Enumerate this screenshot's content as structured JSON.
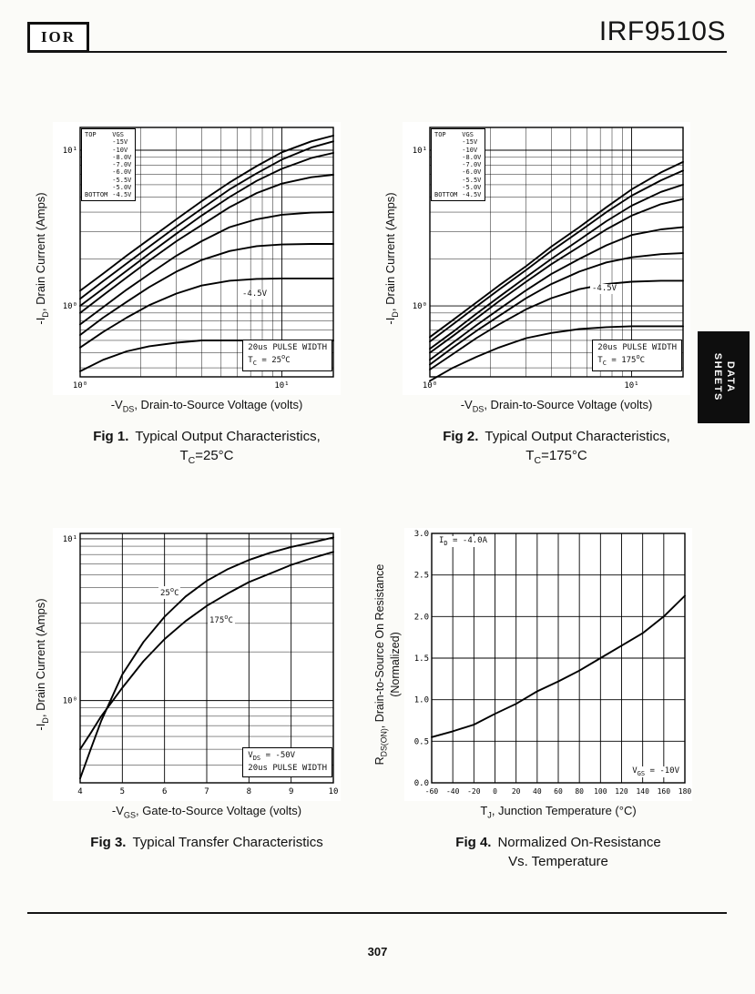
{
  "header": {
    "logo": "IOR",
    "title": "IRF9510S"
  },
  "side_tab": {
    "line1": "DATA",
    "line2": "SHEETS"
  },
  "page": {
    "number": "307"
  },
  "fig1": {
    "legend": {
      "top": "TOP",
      "bottom": "BOTTOM",
      "header": "VGS",
      "values": [
        "-15V",
        "-10V",
        "-8.0V",
        "-7.0V",
        "-6.0V",
        "-5.5V",
        "-5.0V",
        "-4.5V"
      ]
    },
    "ann": {
      "pulse1": [
        {
          "t": "20us PULSE WIDTH"
        }
      ],
      "pulse2": [
        {
          "t": "T"
        },
        {
          "sub": "C"
        },
        {
          "t": " = 25"
        },
        {
          "sup": "o"
        },
        {
          "t": "C"
        }
      ],
      "curve_label": "-4.5V"
    },
    "xlabel": [
      {
        "t": "-V"
      },
      {
        "sub": "DS"
      },
      {
        "t": ", Drain-to-Source Voltage (volts)"
      }
    ],
    "ylabel": [
      {
        "t": "-I"
      },
      {
        "sub": "D"
      },
      {
        "t": ", Drain Current (Amps)"
      }
    ],
    "cap1": [
      {
        "b": "Fig 1."
      },
      {
        "t": "Typical Output Characteristics,"
      }
    ],
    "cap2": [
      {
        "t": "T"
      },
      {
        "sub": "C"
      },
      {
        "t": "=25°C"
      }
    ]
  },
  "fig2": {
    "legend": {
      "top": "TOP",
      "bottom": "BOTTOM",
      "header": "VGS",
      "values": [
        "-15V",
        "-10V",
        "-8.0V",
        "-7.0V",
        "-6.0V",
        "-5.5V",
        "-5.0V",
        "-4.5V"
      ]
    },
    "ann": {
      "pulse1": [
        {
          "t": "20us PULSE WIDTH"
        }
      ],
      "pulse2": [
        {
          "t": "T"
        },
        {
          "sub": "C"
        },
        {
          "t": " = 175"
        },
        {
          "sup": "o"
        },
        {
          "t": "C"
        }
      ],
      "curve_label": "-4.5V"
    },
    "xlabel": [
      {
        "t": "-V"
      },
      {
        "sub": "DS"
      },
      {
        "t": ", Drain-to-Source Voltage (volts)"
      }
    ],
    "ylabel": [
      {
        "t": "-I"
      },
      {
        "sub": "D"
      },
      {
        "t": ", Drain Current (Amps)"
      }
    ],
    "cap1": [
      {
        "b": "Fig 2."
      },
      {
        "t": "Typical Output Characteristics,"
      }
    ],
    "cap2": [
      {
        "t": "T"
      },
      {
        "sub": "C"
      },
      {
        "t": "=175°C"
      }
    ]
  },
  "fig3": {
    "ann": {
      "t25": [
        {
          "t": "25"
        },
        {
          "sup": "o"
        },
        {
          "t": "C"
        }
      ],
      "t175": [
        {
          "t": "175"
        },
        {
          "sup": "o"
        },
        {
          "t": "C"
        }
      ],
      "box1": [
        {
          "t": "V"
        },
        {
          "sub": "DS"
        },
        {
          "t": " = -50V"
        }
      ],
      "box2": [
        {
          "t": "20us PULSE WIDTH"
        }
      ]
    },
    "xlabel": [
      {
        "t": "-V"
      },
      {
        "sub": "GS"
      },
      {
        "t": ", Gate-to-Source Voltage (volts)"
      }
    ],
    "ylabel": [
      {
        "t": "-I"
      },
      {
        "sub": "D"
      },
      {
        "t": ", Drain Current (Amps)"
      }
    ],
    "cap1": [
      {
        "b": "Fig 3."
      },
      {
        "t": "Typical Transfer Characteristics"
      }
    ]
  },
  "fig4": {
    "ann": {
      "id": [
        {
          "t": "I"
        },
        {
          "sub": "D"
        },
        {
          "t": " = -4.0A"
        }
      ],
      "vgs": [
        {
          "t": "V"
        },
        {
          "sub": "GS"
        },
        {
          "t": " = -10V"
        }
      ]
    },
    "xlabel": [
      {
        "t": "T"
      },
      {
        "sub": "J"
      },
      {
        "t": ", Junction Temperature (°C)"
      }
    ],
    "ylabel": [
      {
        "t": "R"
      },
      {
        "sub": "DS(ON)"
      },
      {
        "t": ", Drain-to-Source On Resistance (Normalized)"
      }
    ],
    "cap1": [
      {
        "b": "Fig 4."
      },
      {
        "t": "Normalized On-Resistance"
      }
    ],
    "cap2": [
      {
        "t": "Vs. Temperature"
      }
    ]
  },
  "chart_data": [
    {
      "id": "fig1",
      "type": "line",
      "title": "Typical Output Characteristics, TC=25C",
      "x_axis": {
        "label": "-VDS, Drain-to-Source Voltage (volts)",
        "scale": "log",
        "range": [
          1,
          18
        ],
        "ticks": [
          {
            "v": 1,
            "label": "10⁰"
          },
          {
            "v": 10,
            "label": "10¹"
          }
        ]
      },
      "y_axis": {
        "label": "-ID, Drain Current (Amps)",
        "scale": "log",
        "range": [
          0.35,
          14
        ],
        "ticks": [
          {
            "v": 1,
            "label": "10⁰"
          },
          {
            "v": 10,
            "label": "10¹"
          }
        ]
      },
      "x": [
        1,
        1.3,
        1.7,
        2.2,
        3,
        4,
        5.5,
        7.5,
        10,
        14,
        18
      ],
      "series": [
        {
          "name": "VGS = -15V",
          "values": [
            1.25,
            1.61,
            2.1,
            2.68,
            3.6,
            4.7,
            6.2,
            7.9,
            9.7,
            11.4,
            12.4
          ]
        },
        {
          "name": "VGS = -10V",
          "values": [
            1.11,
            1.44,
            1.87,
            2.4,
            3.23,
            4.2,
            5.6,
            7.1,
            8.7,
            10.4,
            11.4
          ]
        },
        {
          "name": "VGS = -8.0V",
          "values": [
            1.0,
            1.29,
            1.68,
            2.16,
            2.91,
            3.8,
            5.0,
            6.35,
            7.6,
            8.9,
            9.6
          ]
        },
        {
          "name": "VGS = -7.0V",
          "values": [
            0.9,
            1.17,
            1.52,
            1.95,
            2.6,
            3.3,
            4.3,
            5.3,
            6.1,
            6.7,
            6.95
          ]
        },
        {
          "name": "VGS = -6.0V",
          "values": [
            0.76,
            0.98,
            1.27,
            1.6,
            2.1,
            2.6,
            3.2,
            3.6,
            3.85,
            3.97,
            4.0
          ]
        },
        {
          "name": "VGS = -5.5V",
          "values": [
            0.65,
            0.84,
            1.06,
            1.32,
            1.66,
            1.97,
            2.25,
            2.42,
            2.48,
            2.5,
            2.5
          ]
        },
        {
          "name": "VGS = -5.0V",
          "values": [
            0.54,
            0.68,
            0.84,
            1.01,
            1.2,
            1.35,
            1.45,
            1.49,
            1.5,
            1.5,
            1.5
          ]
        },
        {
          "name": "VGS = -4.5V",
          "values": [
            0.38,
            0.45,
            0.51,
            0.55,
            0.58,
            0.6,
            0.6,
            0.6,
            0.6,
            0.6,
            0.6
          ]
        }
      ],
      "notes": [
        "20us PULSE WIDTH",
        "TC = 25C",
        "-4.5V"
      ]
    },
    {
      "id": "fig2",
      "type": "line",
      "title": "Typical Output Characteristics, TC=175C",
      "x_axis": {
        "label": "-VDS, Drain-to-Source Voltage (volts)",
        "scale": "log",
        "range": [
          1,
          18
        ],
        "ticks": [
          {
            "v": 1,
            "label": "10⁰"
          },
          {
            "v": 10,
            "label": "10¹"
          }
        ]
      },
      "y_axis": {
        "label": "-ID, Drain Current (Amps)",
        "scale": "log",
        "range": [
          0.35,
          14
        ],
        "ticks": [
          {
            "v": 1,
            "label": "10⁰"
          },
          {
            "v": 10,
            "label": "10¹"
          }
        ]
      },
      "x": [
        1,
        1.3,
        1.7,
        2.2,
        3,
        4,
        5.5,
        7.5,
        10,
        14,
        18
      ],
      "series": [
        {
          "name": "VGS = -15V",
          "values": [
            0.63,
            0.81,
            1.05,
            1.35,
            1.8,
            2.4,
            3.2,
            4.3,
            5.6,
            7.2,
            8.4
          ]
        },
        {
          "name": "VGS = -10V",
          "values": [
            0.59,
            0.76,
            0.99,
            1.27,
            1.7,
            2.25,
            3.0,
            4.0,
            5.1,
            6.4,
            7.4
          ]
        },
        {
          "name": "VGS = -8.0V",
          "values": [
            0.53,
            0.68,
            0.89,
            1.14,
            1.53,
            2.0,
            2.65,
            3.5,
            4.4,
            5.4,
            6.0
          ]
        },
        {
          "name": "VGS = -7.0V",
          "values": [
            0.5,
            0.64,
            0.83,
            1.07,
            1.43,
            1.85,
            2.4,
            3.1,
            3.8,
            4.5,
            4.85
          ]
        },
        {
          "name": "VGS = -6.0V",
          "values": [
            0.45,
            0.58,
            0.75,
            0.95,
            1.26,
            1.6,
            2.0,
            2.45,
            2.85,
            3.1,
            3.2
          ]
        },
        {
          "name": "VGS = -5.5V",
          "values": [
            0.42,
            0.54,
            0.69,
            0.86,
            1.12,
            1.38,
            1.66,
            1.9,
            2.05,
            2.15,
            2.18
          ]
        },
        {
          "name": "VGS = -5.0V",
          "values": [
            0.39,
            0.49,
            0.62,
            0.76,
            0.95,
            1.12,
            1.28,
            1.38,
            1.43,
            1.45,
            1.45
          ]
        },
        {
          "name": "VGS = -4.5V",
          "values": [
            0.33,
            0.4,
            0.47,
            0.54,
            0.62,
            0.67,
            0.71,
            0.73,
            0.74,
            0.74,
            0.74
          ]
        }
      ],
      "notes": [
        "20us PULSE WIDTH",
        "TC = 175C",
        "-4.5V"
      ]
    },
    {
      "id": "fig3",
      "type": "line",
      "title": "Typical Transfer Characteristics",
      "x_axis": {
        "label": "-VGS, Gate-to-Source Voltage (volts)",
        "scale": "linear",
        "range": [
          4,
          10
        ],
        "grid_step": 1,
        "ticks": [
          {
            "v": 4,
            "label": "4"
          },
          {
            "v": 5,
            "label": "5"
          },
          {
            "v": 6,
            "label": "6"
          },
          {
            "v": 7,
            "label": "7"
          },
          {
            "v": 8,
            "label": "8"
          },
          {
            "v": 9,
            "label": "9"
          },
          {
            "v": 10,
            "label": "10"
          }
        ]
      },
      "y_axis": {
        "label": "-ID, Drain Current (Amps)",
        "scale": "log",
        "range": [
          0.31,
          10.8
        ],
        "ticks": [
          {
            "v": 1,
            "label": "10⁰"
          },
          {
            "v": 10,
            "label": "10¹"
          }
        ]
      },
      "x": [
        4,
        4.25,
        4.5,
        5,
        5.5,
        6,
        6.5,
        7,
        7.5,
        8,
        8.5,
        9,
        9.5,
        10
      ],
      "series": [
        {
          "name": "25C",
          "values": [
            0.33,
            0.5,
            0.75,
            1.45,
            2.3,
            3.3,
            4.4,
            5.5,
            6.5,
            7.4,
            8.2,
            8.9,
            9.5,
            10.2
          ]
        },
        {
          "name": "175C",
          "values": [
            0.5,
            0.63,
            0.8,
            1.2,
            1.75,
            2.4,
            3.1,
            3.85,
            4.6,
            5.4,
            6.1,
            6.9,
            7.6,
            8.3
          ]
        }
      ],
      "notes": [
        "VDS = -50V",
        "20us PULSE WIDTH"
      ]
    },
    {
      "id": "fig4",
      "type": "line",
      "title": "Normalized On-Resistance Vs. Temperature",
      "x_axis": {
        "label": "TJ, Junction Temperature (C)",
        "scale": "linear",
        "range": [
          -60,
          180
        ],
        "grid_step": 20,
        "tick_size": 8,
        "ticks": [
          {
            "v": -60,
            "label": "-60"
          },
          {
            "v": -40,
            "label": "-40"
          },
          {
            "v": -20,
            "label": "-20"
          },
          {
            "v": 0,
            "label": "0"
          },
          {
            "v": 20,
            "label": "20"
          },
          {
            "v": 40,
            "label": "40"
          },
          {
            "v": 60,
            "label": "60"
          },
          {
            "v": 80,
            "label": "80"
          },
          {
            "v": 100,
            "label": "100"
          },
          {
            "v": 120,
            "label": "120"
          },
          {
            "v": 140,
            "label": "140"
          },
          {
            "v": 160,
            "label": "160"
          },
          {
            "v": 180,
            "label": "180"
          }
        ]
      },
      "y_axis": {
        "label": "RDS(ON), Drain-to-Source On Resistance (Normalized)",
        "scale": "linear",
        "range": [
          0,
          3
        ],
        "grid_step": 0.5,
        "ticks": [
          {
            "v": 0,
            "label": "0.0"
          },
          {
            "v": 0.5,
            "label": "0.5"
          },
          {
            "v": 1,
            "label": "1.0"
          },
          {
            "v": 1.5,
            "label": "1.5"
          },
          {
            "v": 2,
            "label": "2.0"
          },
          {
            "v": 2.5,
            "label": "2.5"
          },
          {
            "v": 3,
            "label": "3.0"
          }
        ]
      },
      "x": [
        -60,
        -40,
        -20,
        0,
        20,
        40,
        60,
        80,
        100,
        120,
        140,
        160,
        180
      ],
      "series": [
        {
          "name": "RDS(on) normalized, ID = -4.0A, VGS = -10V",
          "values": [
            0.55,
            0.62,
            0.7,
            0.83,
            0.95,
            1.1,
            1.22,
            1.35,
            1.5,
            1.65,
            1.8,
            2.0,
            2.25
          ]
        }
      ],
      "notes": [
        "ID = -4.0A",
        "VGS = -10V"
      ]
    }
  ]
}
